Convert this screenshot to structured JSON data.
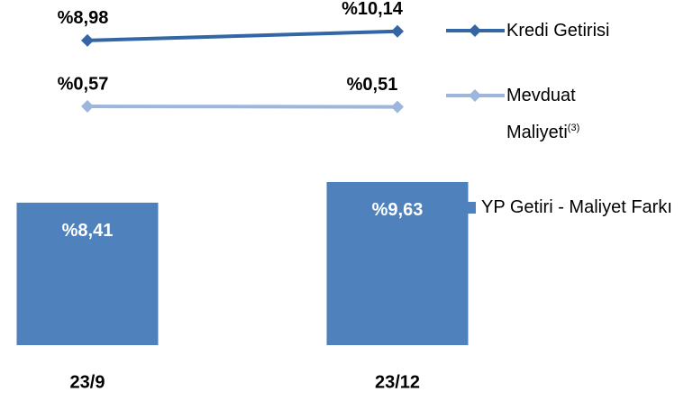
{
  "chart_data": {
    "type": "combo",
    "categories": [
      "23/9",
      "23/12"
    ],
    "series": [
      {
        "name": "Kredi Getirisi",
        "type": "line",
        "color": "#3466a6",
        "values": [
          8.98,
          10.14
        ],
        "value_labels": [
          "%8,98",
          "%10,14"
        ]
      },
      {
        "name": "Mevduat Maliyeti",
        "note": "(3)",
        "type": "line",
        "color": "#9cb6dc",
        "values": [
          0.57,
          0.51
        ],
        "value_labels": [
          "%0,57",
          "%0,51"
        ]
      },
      {
        "name": "YP Getiri - Maliyet Farkı",
        "type": "bar",
        "color": "#4f81bd",
        "values": [
          8.41,
          9.63
        ],
        "value_labels": [
          "%8,41",
          "%9,63"
        ]
      }
    ]
  }
}
